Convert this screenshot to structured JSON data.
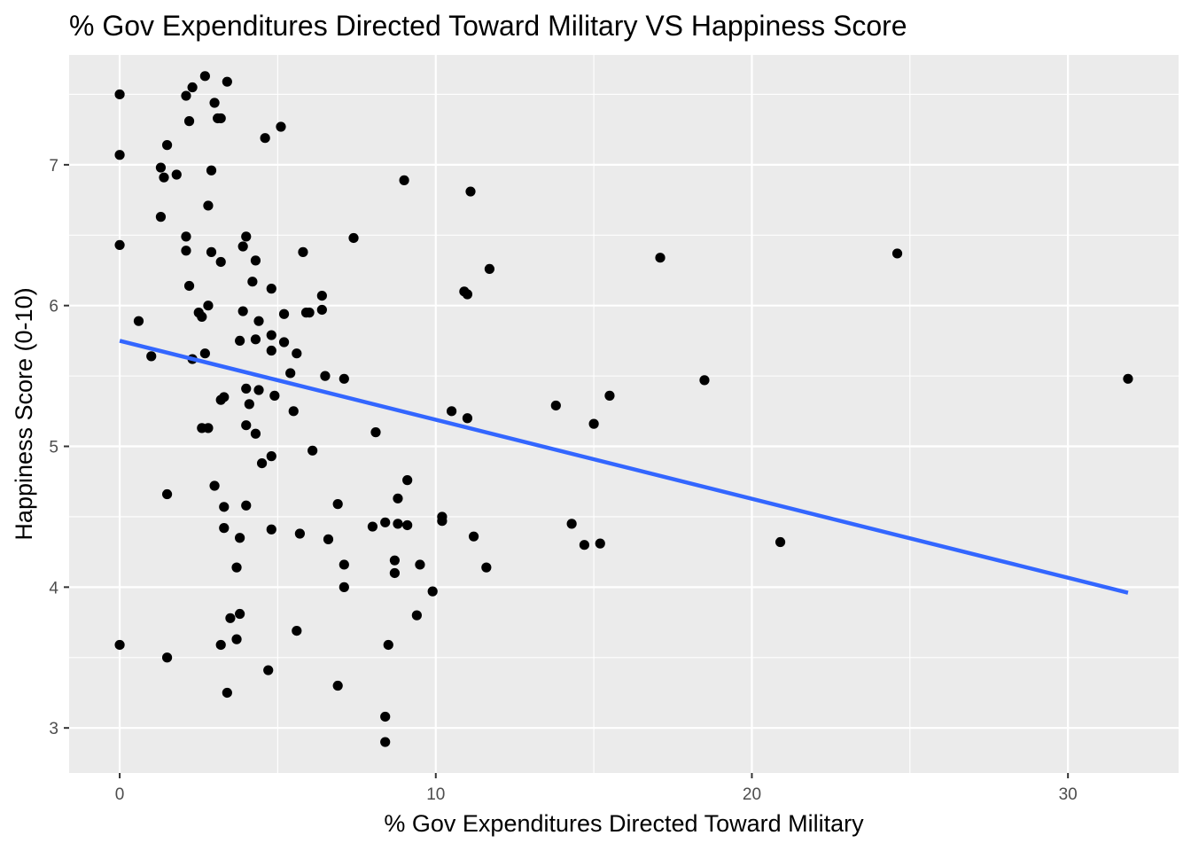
{
  "chart_data": {
    "type": "scatter",
    "title": "% Gov Expenditures Directed Toward Military VS Happiness Score",
    "xlabel": "% Gov Expenditures Directed Toward Military",
    "ylabel": "Happiness Score (0-10)",
    "xlim": [
      -1.6,
      33.5
    ],
    "ylim": [
      2.68,
      7.78
    ],
    "x_ticks": [
      0,
      10,
      20,
      30
    ],
    "y_ticks": [
      3,
      4,
      5,
      6,
      7
    ],
    "x_tick_labels": [
      "0",
      "10",
      "20",
      "30"
    ],
    "y_tick_labels": [
      "3",
      "4",
      "5",
      "6",
      "7"
    ],
    "grid": true,
    "legend": "none",
    "colors": {
      "panel": "#ebebeb",
      "grid": "#ffffff",
      "points": "#000000",
      "trend": "#3366ff"
    },
    "trend_line": {
      "x": [
        0,
        31.9
      ],
      "y": [
        5.75,
        3.96
      ]
    },
    "points": [
      {
        "x": 0.0,
        "y": 7.5
      },
      {
        "x": 0.0,
        "y": 7.07
      },
      {
        "x": 0.0,
        "y": 6.43
      },
      {
        "x": 0.0,
        "y": 3.59
      },
      {
        "x": 0.6,
        "y": 5.89
      },
      {
        "x": 1.0,
        "y": 5.64
      },
      {
        "x": 1.3,
        "y": 6.98
      },
      {
        "x": 1.3,
        "y": 6.63
      },
      {
        "x": 1.4,
        "y": 6.91
      },
      {
        "x": 1.5,
        "y": 7.14
      },
      {
        "x": 1.5,
        "y": 4.66
      },
      {
        "x": 1.5,
        "y": 3.5
      },
      {
        "x": 1.8,
        "y": 6.93
      },
      {
        "x": 2.1,
        "y": 7.49
      },
      {
        "x": 2.1,
        "y": 6.49
      },
      {
        "x": 2.1,
        "y": 6.39
      },
      {
        "x": 2.2,
        "y": 7.31
      },
      {
        "x": 2.2,
        "y": 6.14
      },
      {
        "x": 2.3,
        "y": 5.62
      },
      {
        "x": 2.3,
        "y": 7.55
      },
      {
        "x": 2.5,
        "y": 5.95
      },
      {
        "x": 2.6,
        "y": 5.92
      },
      {
        "x": 2.6,
        "y": 5.13
      },
      {
        "x": 2.7,
        "y": 7.63
      },
      {
        "x": 2.7,
        "y": 5.66
      },
      {
        "x": 2.8,
        "y": 6.71
      },
      {
        "x": 2.8,
        "y": 6.0
      },
      {
        "x": 2.8,
        "y": 5.13
      },
      {
        "x": 2.9,
        "y": 6.96
      },
      {
        "x": 2.9,
        "y": 6.38
      },
      {
        "x": 3.0,
        "y": 7.44
      },
      {
        "x": 3.0,
        "y": 4.72
      },
      {
        "x": 3.1,
        "y": 7.33
      },
      {
        "x": 3.2,
        "y": 7.33
      },
      {
        "x": 3.2,
        "y": 6.31
      },
      {
        "x": 3.2,
        "y": 5.33
      },
      {
        "x": 3.2,
        "y": 3.59
      },
      {
        "x": 3.3,
        "y": 5.35
      },
      {
        "x": 3.3,
        "y": 4.57
      },
      {
        "x": 3.3,
        "y": 4.42
      },
      {
        "x": 3.4,
        "y": 3.25
      },
      {
        "x": 3.4,
        "y": 7.59
      },
      {
        "x": 3.5,
        "y": 3.78
      },
      {
        "x": 3.7,
        "y": 4.14
      },
      {
        "x": 3.7,
        "y": 3.63
      },
      {
        "x": 3.8,
        "y": 3.81
      },
      {
        "x": 3.8,
        "y": 4.35
      },
      {
        "x": 3.8,
        "y": 5.75
      },
      {
        "x": 3.9,
        "y": 5.96
      },
      {
        "x": 3.9,
        "y": 6.42
      },
      {
        "x": 4.0,
        "y": 6.49
      },
      {
        "x": 4.0,
        "y": 5.41
      },
      {
        "x": 4.0,
        "y": 5.15
      },
      {
        "x": 4.0,
        "y": 4.58
      },
      {
        "x": 4.1,
        "y": 5.3
      },
      {
        "x": 4.2,
        "y": 6.17
      },
      {
        "x": 4.3,
        "y": 6.32
      },
      {
        "x": 4.3,
        "y": 5.76
      },
      {
        "x": 4.3,
        "y": 5.09
      },
      {
        "x": 4.4,
        "y": 5.89
      },
      {
        "x": 4.4,
        "y": 5.4
      },
      {
        "x": 4.5,
        "y": 4.88
      },
      {
        "x": 4.6,
        "y": 7.19
      },
      {
        "x": 4.7,
        "y": 3.41
      },
      {
        "x": 4.8,
        "y": 6.12
      },
      {
        "x": 4.8,
        "y": 5.79
      },
      {
        "x": 4.8,
        "y": 5.68
      },
      {
        "x": 4.8,
        "y": 4.93
      },
      {
        "x": 4.8,
        "y": 4.41
      },
      {
        "x": 4.9,
        "y": 5.36
      },
      {
        "x": 5.1,
        "y": 7.27
      },
      {
        "x": 5.2,
        "y": 5.74
      },
      {
        "x": 5.2,
        "y": 5.94
      },
      {
        "x": 5.4,
        "y": 5.52
      },
      {
        "x": 5.5,
        "y": 5.25
      },
      {
        "x": 5.6,
        "y": 5.66
      },
      {
        "x": 5.6,
        "y": 3.69
      },
      {
        "x": 5.7,
        "y": 4.38
      },
      {
        "x": 5.8,
        "y": 6.38
      },
      {
        "x": 5.9,
        "y": 5.95
      },
      {
        "x": 6.0,
        "y": 5.95
      },
      {
        "x": 6.1,
        "y": 4.97
      },
      {
        "x": 6.4,
        "y": 6.07
      },
      {
        "x": 6.4,
        "y": 5.97
      },
      {
        "x": 6.5,
        "y": 5.5
      },
      {
        "x": 6.6,
        "y": 4.34
      },
      {
        "x": 6.9,
        "y": 4.59
      },
      {
        "x": 6.9,
        "y": 3.3
      },
      {
        "x": 7.1,
        "y": 5.48
      },
      {
        "x": 7.1,
        "y": 4.16
      },
      {
        "x": 7.1,
        "y": 4.0
      },
      {
        "x": 7.4,
        "y": 6.48
      },
      {
        "x": 8.0,
        "y": 4.43
      },
      {
        "x": 8.1,
        "y": 5.1
      },
      {
        "x": 8.4,
        "y": 4.46
      },
      {
        "x": 8.4,
        "y": 3.08
      },
      {
        "x": 8.4,
        "y": 2.9
      },
      {
        "x": 8.5,
        "y": 3.59
      },
      {
        "x": 8.7,
        "y": 4.19
      },
      {
        "x": 8.7,
        "y": 4.1
      },
      {
        "x": 8.8,
        "y": 4.63
      },
      {
        "x": 8.8,
        "y": 4.45
      },
      {
        "x": 9.0,
        "y": 6.89
      },
      {
        "x": 9.1,
        "y": 4.76
      },
      {
        "x": 9.1,
        "y": 4.44
      },
      {
        "x": 9.4,
        "y": 3.8
      },
      {
        "x": 9.5,
        "y": 4.16
      },
      {
        "x": 9.9,
        "y": 3.97
      },
      {
        "x": 10.2,
        "y": 4.5
      },
      {
        "x": 10.2,
        "y": 4.47
      },
      {
        "x": 10.5,
        "y": 5.25
      },
      {
        "x": 10.9,
        "y": 6.1
      },
      {
        "x": 11.0,
        "y": 6.08
      },
      {
        "x": 11.0,
        "y": 5.2
      },
      {
        "x": 11.1,
        "y": 6.81
      },
      {
        "x": 11.2,
        "y": 4.36
      },
      {
        "x": 11.6,
        "y": 4.14
      },
      {
        "x": 11.7,
        "y": 6.26
      },
      {
        "x": 13.8,
        "y": 5.29
      },
      {
        "x": 14.3,
        "y": 4.45
      },
      {
        "x": 14.7,
        "y": 4.3
      },
      {
        "x": 15.0,
        "y": 5.16
      },
      {
        "x": 15.2,
        "y": 4.31
      },
      {
        "x": 15.5,
        "y": 5.36
      },
      {
        "x": 17.1,
        "y": 6.34
      },
      {
        "x": 18.5,
        "y": 5.47
      },
      {
        "x": 20.9,
        "y": 4.32
      },
      {
        "x": 24.6,
        "y": 6.37
      },
      {
        "x": 31.9,
        "y": 5.48
      }
    ]
  }
}
